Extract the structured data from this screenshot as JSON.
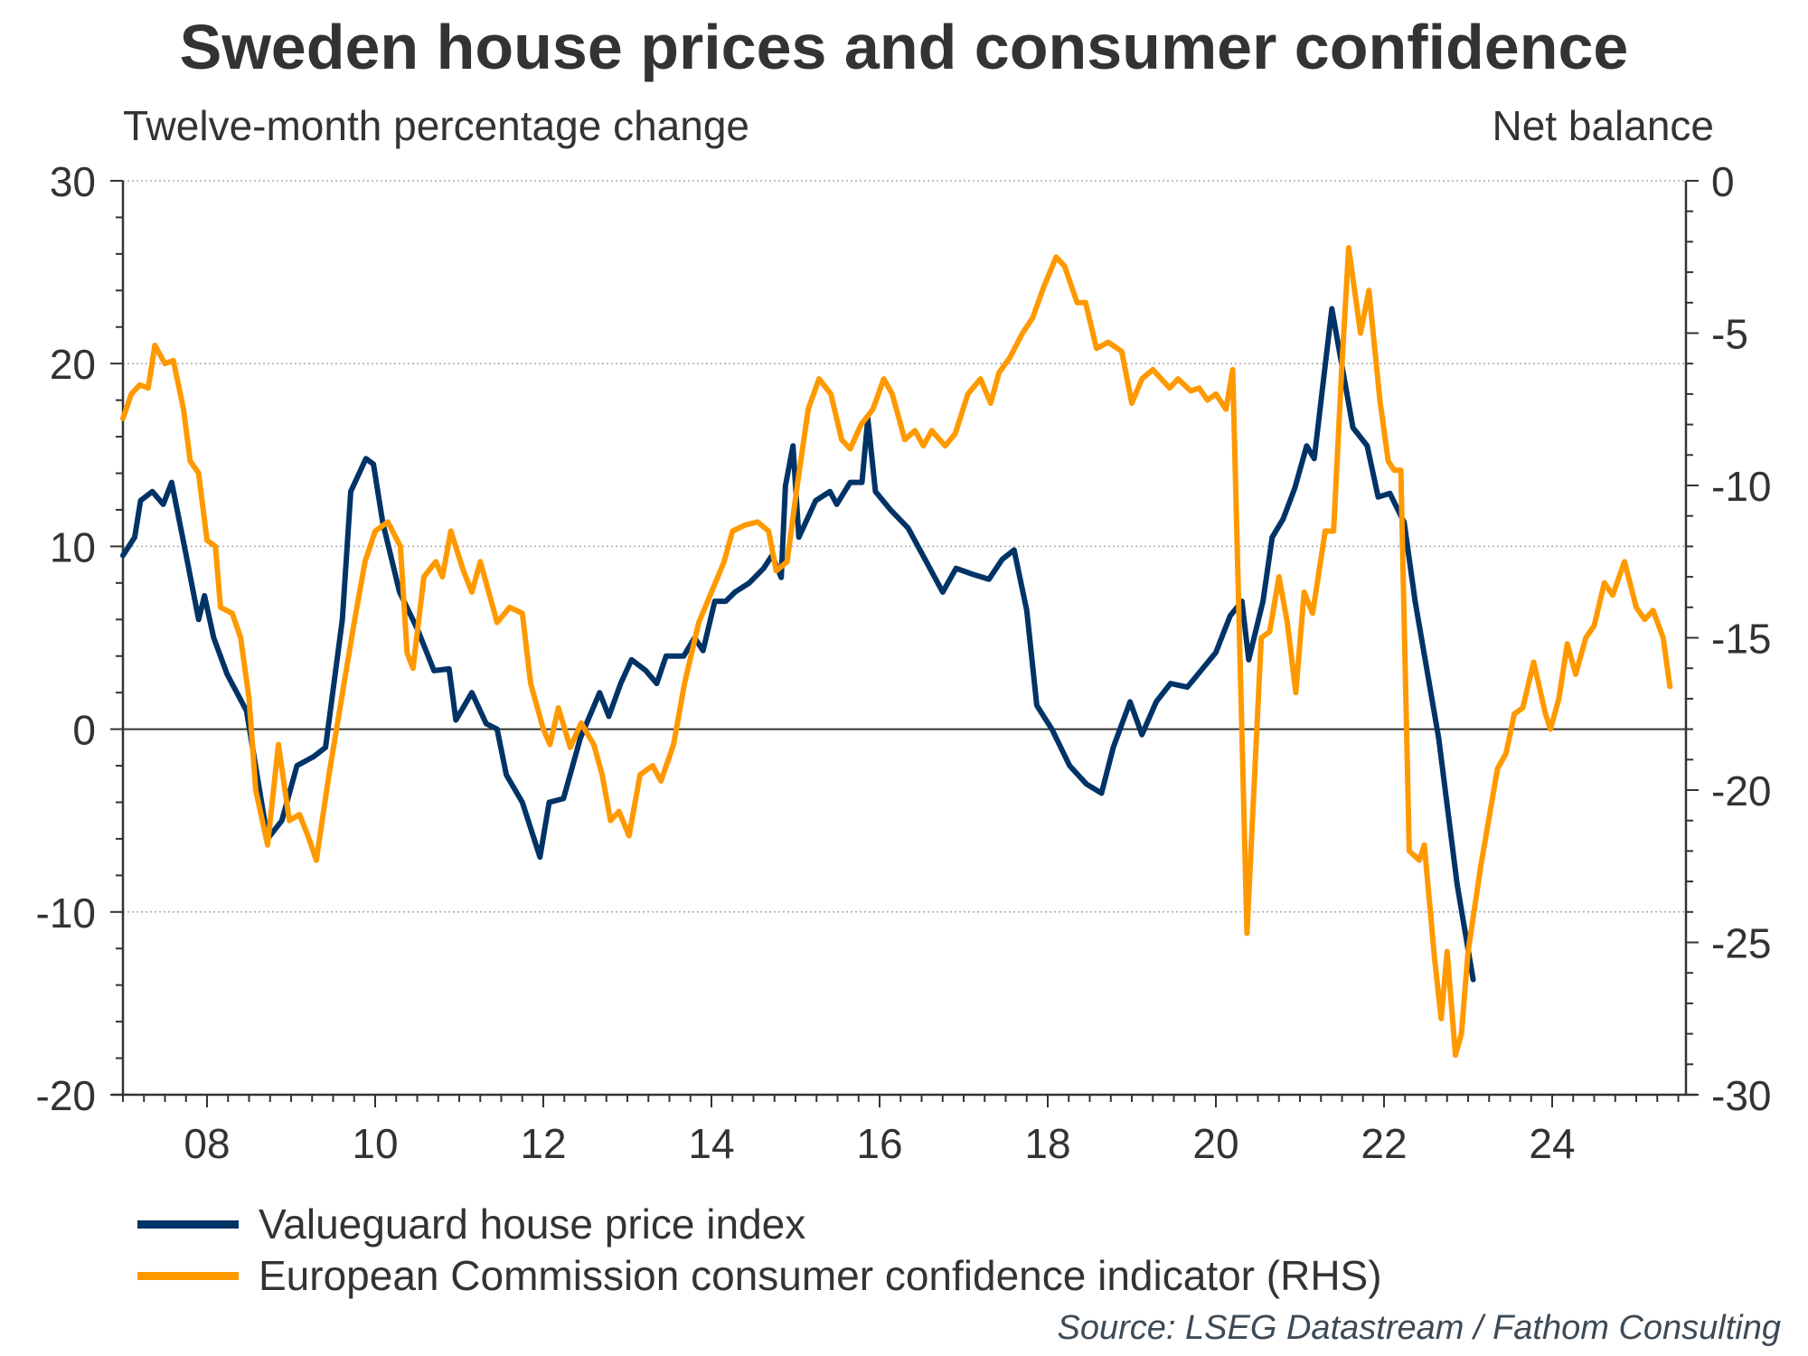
{
  "chart_data": {
    "type": "line",
    "title": "Sweden house prices and consumer confidence",
    "ylabel": "Twelve-month percentage change",
    "y2label": "Net balance",
    "ylim": [
      -20,
      30
    ],
    "y2lim": [
      -30,
      0
    ],
    "xlim": [
      2007.0,
      2025.6
    ],
    "grid": true,
    "yticks": [
      30,
      20,
      10,
      0,
      -10,
      -20
    ],
    "y2ticks": [
      0,
      -5,
      -10,
      -15,
      -20,
      -25,
      -30
    ],
    "xticks": [
      {
        "value": 2008,
        "label": "08"
      },
      {
        "value": 2010,
        "label": "10"
      },
      {
        "value": 2012,
        "label": "12"
      },
      {
        "value": 2014,
        "label": "14"
      },
      {
        "value": 2016,
        "label": "16"
      },
      {
        "value": 2018,
        "label": "18"
      },
      {
        "value": 2020,
        "label": "20"
      },
      {
        "value": 2022,
        "label": "22"
      },
      {
        "value": 2024,
        "label": "24"
      }
    ],
    "legend_position": "bottom-left",
    "series": [
      {
        "name": "Valueguard house price index",
        "axis": "left",
        "color": "#003366",
        "points": [
          [
            2007.0,
            9.5
          ],
          [
            2007.14,
            10.5
          ],
          [
            2007.21,
            12.5
          ],
          [
            2007.35,
            13.0
          ],
          [
            2007.48,
            12.3
          ],
          [
            2007.58,
            13.5
          ],
          [
            2007.74,
            9.8
          ],
          [
            2007.9,
            6.0
          ],
          [
            2007.97,
            7.3
          ],
          [
            2008.08,
            5.0
          ],
          [
            2008.24,
            3.0
          ],
          [
            2008.47,
            1.0
          ],
          [
            2008.72,
            -6.0
          ],
          [
            2008.89,
            -5.0
          ],
          [
            2009.07,
            -2.0
          ],
          [
            2009.27,
            -1.5
          ],
          [
            2009.41,
            -1.0
          ],
          [
            2009.61,
            6.0
          ],
          [
            2009.71,
            13.0
          ],
          [
            2009.89,
            14.8
          ],
          [
            2009.98,
            14.5
          ],
          [
            2010.09,
            11.3
          ],
          [
            2010.29,
            7.5
          ],
          [
            2010.5,
            5.5
          ],
          [
            2010.7,
            3.2
          ],
          [
            2010.88,
            3.3
          ],
          [
            2010.96,
            0.5
          ],
          [
            2011.15,
            2.0
          ],
          [
            2011.32,
            0.3
          ],
          [
            2011.45,
            0.0
          ],
          [
            2011.56,
            -2.5
          ],
          [
            2011.75,
            -4.0
          ],
          [
            2011.96,
            -7.0
          ],
          [
            2012.07,
            -4.0
          ],
          [
            2012.24,
            -3.8
          ],
          [
            2012.44,
            -0.5
          ],
          [
            2012.67,
            2.0
          ],
          [
            2012.78,
            0.7
          ],
          [
            2012.92,
            2.5
          ],
          [
            2013.05,
            3.8
          ],
          [
            2013.22,
            3.2
          ],
          [
            2013.35,
            2.5
          ],
          [
            2013.46,
            4.0
          ],
          [
            2013.67,
            4.0
          ],
          [
            2013.8,
            5.0
          ],
          [
            2013.9,
            4.3
          ],
          [
            2014.04,
            7.0
          ],
          [
            2014.17,
            7.0
          ],
          [
            2014.28,
            7.5
          ],
          [
            2014.45,
            8.0
          ],
          [
            2014.62,
            8.8
          ],
          [
            2014.72,
            9.5
          ],
          [
            2014.83,
            8.3
          ],
          [
            2014.88,
            13.3
          ],
          [
            2014.97,
            15.5
          ],
          [
            2015.04,
            10.5
          ],
          [
            2015.24,
            12.5
          ],
          [
            2015.41,
            13.0
          ],
          [
            2015.49,
            12.3
          ],
          [
            2015.65,
            13.5
          ],
          [
            2015.79,
            13.5
          ],
          [
            2015.86,
            17.0
          ],
          [
            2015.95,
            13.0
          ],
          [
            2016.13,
            12.0
          ],
          [
            2016.34,
            11.0
          ],
          [
            2016.54,
            9.3
          ],
          [
            2016.75,
            7.5
          ],
          [
            2016.91,
            8.8
          ],
          [
            2017.09,
            8.5
          ],
          [
            2017.3,
            8.2
          ],
          [
            2017.46,
            9.3
          ],
          [
            2017.6,
            9.8
          ],
          [
            2017.75,
            6.5
          ],
          [
            2017.87,
            1.3
          ],
          [
            2018.05,
            0.0
          ],
          [
            2018.26,
            -2.0
          ],
          [
            2018.46,
            -3.0
          ],
          [
            2018.64,
            -3.5
          ],
          [
            2018.78,
            -1.0
          ],
          [
            2018.98,
            1.5
          ],
          [
            2019.12,
            -0.3
          ],
          [
            2019.29,
            1.5
          ],
          [
            2019.46,
            2.5
          ],
          [
            2019.66,
            2.3
          ],
          [
            2019.84,
            3.3
          ],
          [
            2020.0,
            4.2
          ],
          [
            2020.17,
            6.2
          ],
          [
            2020.31,
            7.0
          ],
          [
            2020.39,
            3.8
          ],
          [
            2020.56,
            7.0
          ],
          [
            2020.67,
            10.5
          ],
          [
            2020.8,
            11.5
          ],
          [
            2020.94,
            13.2
          ],
          [
            2021.08,
            15.5
          ],
          [
            2021.17,
            14.8
          ],
          [
            2021.38,
            23.0
          ],
          [
            2021.63,
            16.5
          ],
          [
            2021.8,
            15.5
          ],
          [
            2021.93,
            12.7
          ],
          [
            2022.07,
            12.9
          ],
          [
            2022.24,
            11.3
          ],
          [
            2022.37,
            7.0
          ],
          [
            2022.65,
            -0.5
          ],
          [
            2022.76,
            -4.5
          ],
          [
            2022.87,
            -8.5
          ],
          [
            2023.06,
            -13.7
          ]
        ]
      },
      {
        "name": "European Commission consumer confidence indicator (RHS)",
        "axis": "right",
        "color": "#ff9900",
        "points": [
          [
            2007.0,
            -7.8
          ],
          [
            2007.1,
            -7.0
          ],
          [
            2007.2,
            -6.7
          ],
          [
            2007.3,
            -6.8
          ],
          [
            2007.38,
            -5.4
          ],
          [
            2007.5,
            -6.0
          ],
          [
            2007.6,
            -5.9
          ],
          [
            2007.72,
            -7.5
          ],
          [
            2007.8,
            -9.2
          ],
          [
            2007.9,
            -9.6
          ],
          [
            2008.0,
            -11.8
          ],
          [
            2008.1,
            -12.0
          ],
          [
            2008.16,
            -14.0
          ],
          [
            2008.3,
            -14.2
          ],
          [
            2008.4,
            -15.0
          ],
          [
            2008.5,
            -17.0
          ],
          [
            2008.58,
            -20.0
          ],
          [
            2008.72,
            -21.8
          ],
          [
            2008.85,
            -18.5
          ],
          [
            2008.98,
            -21.0
          ],
          [
            2009.1,
            -20.8
          ],
          [
            2009.2,
            -21.5
          ],
          [
            2009.3,
            -22.3
          ],
          [
            2009.45,
            -19.5
          ],
          [
            2009.6,
            -17.0
          ],
          [
            2009.75,
            -14.5
          ],
          [
            2009.88,
            -12.5
          ],
          [
            2010.0,
            -11.5
          ],
          [
            2010.15,
            -11.2
          ],
          [
            2010.3,
            -12.0
          ],
          [
            2010.38,
            -15.5
          ],
          [
            2010.45,
            -16.0
          ],
          [
            2010.58,
            -13.0
          ],
          [
            2010.72,
            -12.5
          ],
          [
            2010.8,
            -13.0
          ],
          [
            2010.9,
            -11.5
          ],
          [
            2011.05,
            -12.8
          ],
          [
            2011.15,
            -13.5
          ],
          [
            2011.25,
            -12.5
          ],
          [
            2011.45,
            -14.5
          ],
          [
            2011.6,
            -14.0
          ],
          [
            2011.75,
            -14.2
          ],
          [
            2011.85,
            -16.5
          ],
          [
            2012.0,
            -18.0
          ],
          [
            2012.08,
            -18.5
          ],
          [
            2012.18,
            -17.3
          ],
          [
            2012.32,
            -18.6
          ],
          [
            2012.45,
            -17.8
          ],
          [
            2012.6,
            -18.5
          ],
          [
            2012.7,
            -19.5
          ],
          [
            2012.8,
            -21.0
          ],
          [
            2012.9,
            -20.7
          ],
          [
            2013.02,
            -21.5
          ],
          [
            2013.15,
            -19.5
          ],
          [
            2013.3,
            -19.2
          ],
          [
            2013.4,
            -19.7
          ],
          [
            2013.55,
            -18.5
          ],
          [
            2013.68,
            -16.5
          ],
          [
            2013.85,
            -14.5
          ],
          [
            2014.0,
            -13.5
          ],
          [
            2014.15,
            -12.5
          ],
          [
            2014.25,
            -11.5
          ],
          [
            2014.4,
            -11.3
          ],
          [
            2014.55,
            -11.2
          ],
          [
            2014.68,
            -11.5
          ],
          [
            2014.77,
            -12.8
          ],
          [
            2014.9,
            -12.5
          ],
          [
            2015.02,
            -10.0
          ],
          [
            2015.15,
            -7.5
          ],
          [
            2015.28,
            -6.5
          ],
          [
            2015.42,
            -7.0
          ],
          [
            2015.55,
            -8.5
          ],
          [
            2015.65,
            -8.8
          ],
          [
            2015.78,
            -8.0
          ],
          [
            2015.92,
            -7.5
          ],
          [
            2016.05,
            -6.5
          ],
          [
            2016.15,
            -7.0
          ],
          [
            2016.3,
            -8.5
          ],
          [
            2016.42,
            -8.2
          ],
          [
            2016.52,
            -8.7
          ],
          [
            2016.62,
            -8.2
          ],
          [
            2016.78,
            -8.7
          ],
          [
            2016.9,
            -8.3
          ],
          [
            2017.05,
            -7.0
          ],
          [
            2017.2,
            -6.5
          ],
          [
            2017.32,
            -7.3
          ],
          [
            2017.42,
            -6.3
          ],
          [
            2017.55,
            -5.8
          ],
          [
            2017.7,
            -5.0
          ],
          [
            2017.82,
            -4.5
          ],
          [
            2017.95,
            -3.5
          ],
          [
            2018.1,
            -2.5
          ],
          [
            2018.2,
            -2.8
          ],
          [
            2018.35,
            -4.0
          ],
          [
            2018.45,
            -4.0
          ],
          [
            2018.58,
            -5.5
          ],
          [
            2018.72,
            -5.3
          ],
          [
            2018.88,
            -5.6
          ],
          [
            2019.0,
            -7.3
          ],
          [
            2019.12,
            -6.5
          ],
          [
            2019.25,
            -6.2
          ],
          [
            2019.35,
            -6.5
          ],
          [
            2019.45,
            -6.8
          ],
          [
            2019.55,
            -6.5
          ],
          [
            2019.7,
            -6.9
          ],
          [
            2019.8,
            -6.8
          ],
          [
            2019.9,
            -7.2
          ],
          [
            2020.0,
            -7.0
          ],
          [
            2020.12,
            -7.5
          ],
          [
            2020.2,
            -6.2
          ],
          [
            2020.37,
            -24.7
          ],
          [
            2020.54,
            -15.0
          ],
          [
            2020.64,
            -14.8
          ],
          [
            2020.75,
            -13.0
          ],
          [
            2020.85,
            -14.5
          ],
          [
            2020.95,
            -16.8
          ],
          [
            2021.05,
            -13.5
          ],
          [
            2021.15,
            -14.2
          ],
          [
            2021.3,
            -11.5
          ],
          [
            2021.4,
            -11.5
          ],
          [
            2021.5,
            -6.0
          ],
          [
            2021.58,
            -2.2
          ],
          [
            2021.72,
            -5.0
          ],
          [
            2021.82,
            -3.6
          ],
          [
            2021.95,
            -7.2
          ],
          [
            2022.05,
            -9.2
          ],
          [
            2022.12,
            -9.5
          ],
          [
            2022.2,
            -9.5
          ],
          [
            2022.3,
            -22.0
          ],
          [
            2022.42,
            -22.3
          ],
          [
            2022.48,
            -21.8
          ],
          [
            2022.6,
            -25.5
          ],
          [
            2022.68,
            -27.5
          ],
          [
            2022.75,
            -25.3
          ],
          [
            2022.85,
            -28.7
          ],
          [
            2022.92,
            -28.0
          ],
          [
            2023.0,
            -25.3
          ],
          [
            2023.15,
            -22.5
          ],
          [
            2023.35,
            -19.3
          ],
          [
            2023.45,
            -18.8
          ],
          [
            2023.55,
            -17.5
          ],
          [
            2023.65,
            -17.3
          ],
          [
            2023.78,
            -15.8
          ],
          [
            2023.92,
            -17.5
          ],
          [
            2023.98,
            -18.0
          ],
          [
            2024.08,
            -17.0
          ],
          [
            2024.18,
            -15.2
          ],
          [
            2024.28,
            -16.2
          ],
          [
            2024.4,
            -15.0
          ],
          [
            2024.5,
            -14.6
          ],
          [
            2024.62,
            -13.2
          ],
          [
            2024.72,
            -13.6
          ],
          [
            2024.86,
            -12.5
          ],
          [
            2025.0,
            -14.0
          ],
          [
            2025.1,
            -14.4
          ],
          [
            2025.2,
            -14.1
          ],
          [
            2025.32,
            -15.0
          ],
          [
            2025.4,
            -16.6
          ]
        ]
      }
    ]
  },
  "legend": {
    "items": [
      {
        "label": "Valueguard house price index",
        "color": "#003366"
      },
      {
        "label": "European Commission consumer confidence indicator (RHS)",
        "color": "#ff9900"
      }
    ]
  },
  "source": "Source: LSEG Datastream / Fathom Consulting"
}
